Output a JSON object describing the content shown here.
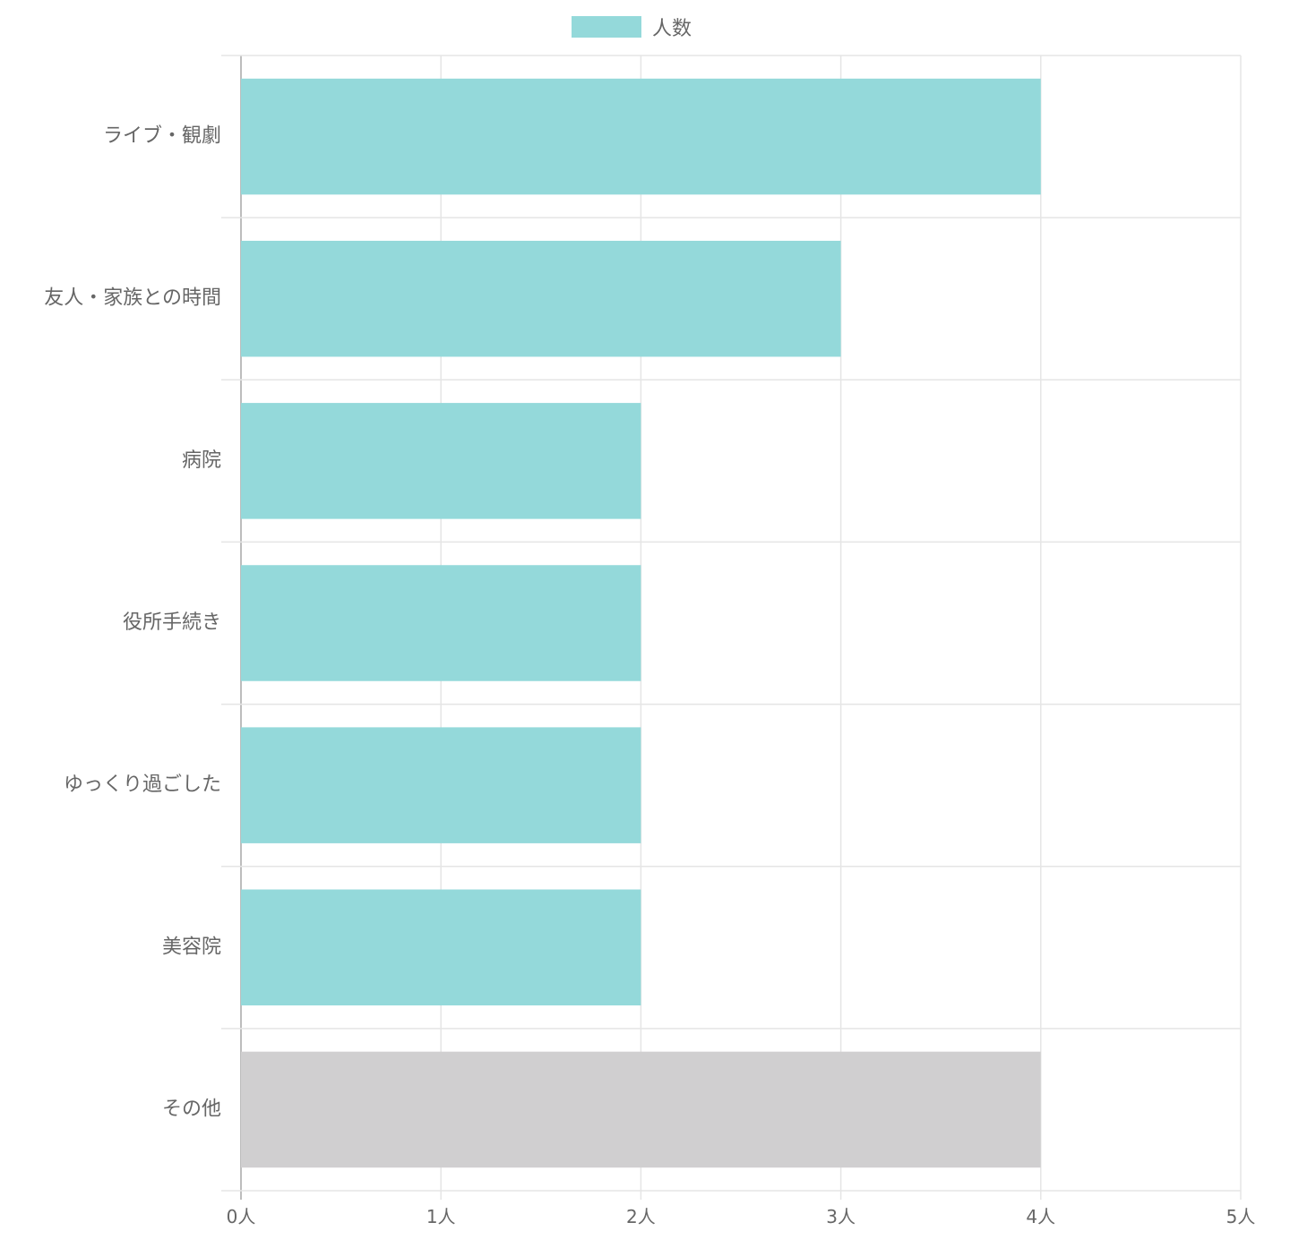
{
  "chart_data": {
    "type": "bar",
    "orientation": "horizontal",
    "categories": [
      "ライブ・観劇",
      "友人・家族との時間",
      "病院",
      "役所手続き",
      "ゆっくり過ごした",
      "美容院",
      "その他"
    ],
    "series": [
      {
        "name": "人数",
        "values": [
          4,
          3,
          2,
          2,
          2,
          2,
          4
        ],
        "colors": [
          "#94d9da",
          "#94d9da",
          "#94d9da",
          "#94d9da",
          "#94d9da",
          "#94d9da",
          "#d0cfd0"
        ]
      }
    ],
    "x_ticks": [
      "0人",
      "1人",
      "2人",
      "3人",
      "4人",
      "5人"
    ],
    "xlim": [
      0,
      5
    ],
    "grid": true,
    "legend_position": "top-center",
    "colors": {
      "primary": "#94d9da",
      "other": "#d0cfd0",
      "grid": "#e5e5e5",
      "axis": "#bdbdbd",
      "text": "#666666"
    }
  }
}
